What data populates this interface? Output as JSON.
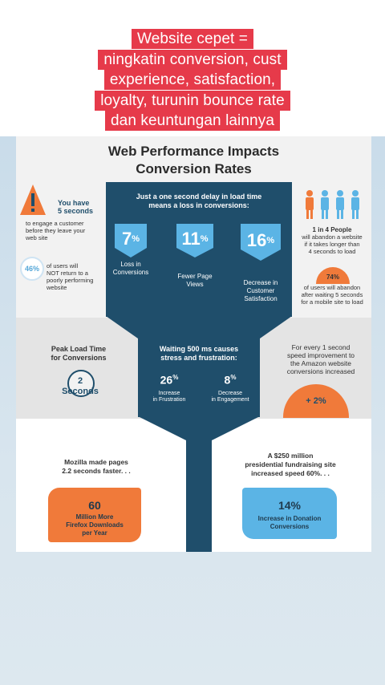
{
  "caption": {
    "lines": [
      "Website cepet =",
      "ningkatin conversion, cust",
      "experience, satisfaction,",
      "loyalty, turunin bounce rate",
      "dan keuntungan lainnya"
    ]
  },
  "infographic": {
    "title_line1": "Web Performance Impacts",
    "title_line2": "Conversion Rates",
    "top_left": {
      "you_have": "You have",
      "five_seconds": "5 seconds",
      "engage_line1": "to engage a customer",
      "engage_line2": "before they leave your",
      "engage_line3": "web site",
      "stat_value": "46%",
      "stat_line1": "of users will",
      "stat_line2": "NOT return to a",
      "stat_line3": "poorly performing",
      "stat_line4": "website"
    },
    "center_top": {
      "heading_line1": "Just a one second delay in load time",
      "heading_line2": "means a loss in conversions:",
      "stats": [
        {
          "value": "7",
          "unit": "%",
          "label_line1": "Loss in",
          "label_line2": "Conversions",
          "label_line3": ""
        },
        {
          "value": "11",
          "unit": "%",
          "label_line1": "Fewer Page",
          "label_line2": "Views",
          "label_line3": ""
        },
        {
          "value": "16",
          "unit": "%",
          "label_line1": "Decrease in",
          "label_line2": "Customer",
          "label_line3": "Satisfaction"
        }
      ]
    },
    "top_right": {
      "people_line1": "1 in 4 People",
      "people_line2": "will abandon a website",
      "people_line3": "if it takes longer than",
      "people_line4": "4 seconds to load",
      "stat_value": "74%",
      "stat_line1": "of users will abandon",
      "stat_line2": "after waiting 5 seconds",
      "stat_line3": "for a mobile site to load"
    },
    "mid_left": {
      "heading_line1": "Peak Load Time",
      "heading_line2": "for Conversions",
      "value": "2",
      "unit": "Seconds"
    },
    "mid_center": {
      "heading_line1": "Waiting 500 ms causes",
      "heading_line2": "stress and frustration:",
      "stats": [
        {
          "value": "26",
          "unit": "%",
          "label_line1": "Increase",
          "label_line2": "in Frustration"
        },
        {
          "value": "8",
          "unit": "%",
          "label_line1": "Decrease",
          "label_line2": "in Engagement"
        }
      ]
    },
    "mid_right": {
      "line1": "For every 1 second",
      "line2": "speed improvement to",
      "line3": "the Amazon website",
      "line4": "conversions increased",
      "value": "+ 2%"
    },
    "bottom_left": {
      "line1": "Mozilla made pages",
      "line2": "2.2 seconds faster. . .",
      "value": "60",
      "label_line1": "Million More",
      "label_line2": "Firefox Downloads",
      "label_line3": "per Year"
    },
    "bottom_right": {
      "line1": "A $250 million",
      "line2": "presidential fundraising site",
      "line3": "increased speed 60%. . .",
      "value": "14%",
      "label_line1": "Increase in Donation",
      "label_line2": "Conversions"
    },
    "colors": {
      "navy": "#1f4e6b",
      "blue": "#5bb4e5",
      "orange": "#f07a3a",
      "caption_red": "#e63a4a"
    }
  }
}
